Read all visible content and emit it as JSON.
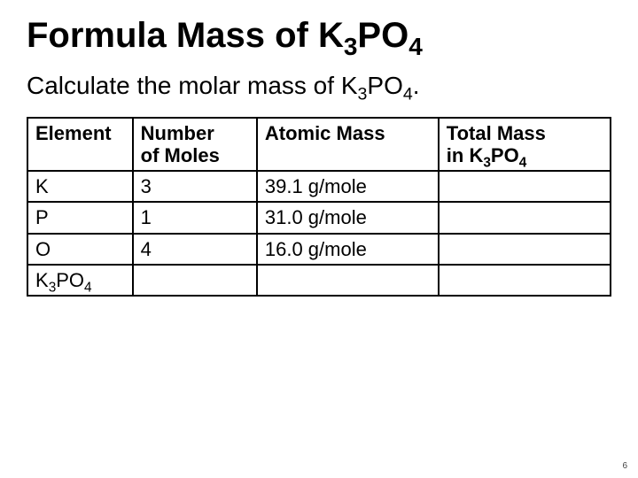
{
  "title_prefix": "Formula Mass of K",
  "title_sub1": "3",
  "title_mid": "PO",
  "title_sub2": "4",
  "subtitle_prefix": "Calculate the molar mass of K",
  "subtitle_sub1": "3",
  "subtitle_mid": "PO",
  "subtitle_sub2": "4",
  "subtitle_suffix": ".",
  "headers": {
    "element": "Element",
    "moles_l1": "Number",
    "moles_l2": "of Moles",
    "atomic": "Atomic Mass",
    "total_l1": "Total Mass",
    "total_l2_prefix": "in K",
    "total_l2_sub1": "3",
    "total_l2_mid": "PO",
    "total_l2_sub2": "4"
  },
  "rows": {
    "r1": {
      "element": "K",
      "moles": "3",
      "atomic": "39.1 g/mole",
      "total": ""
    },
    "r2": {
      "element": "P",
      "moles": "1",
      "atomic": "31.0 g/mole",
      "total": ""
    },
    "r3": {
      "element": "O",
      "moles": "4",
      "atomic": "16.0 g/mole",
      "total": ""
    },
    "r4": {
      "element_prefix": "K",
      "element_sub1": "3",
      "element_mid": "PO",
      "element_sub2": "4",
      "moles": "",
      "atomic": "",
      "total": ""
    }
  },
  "page_number": "6"
}
